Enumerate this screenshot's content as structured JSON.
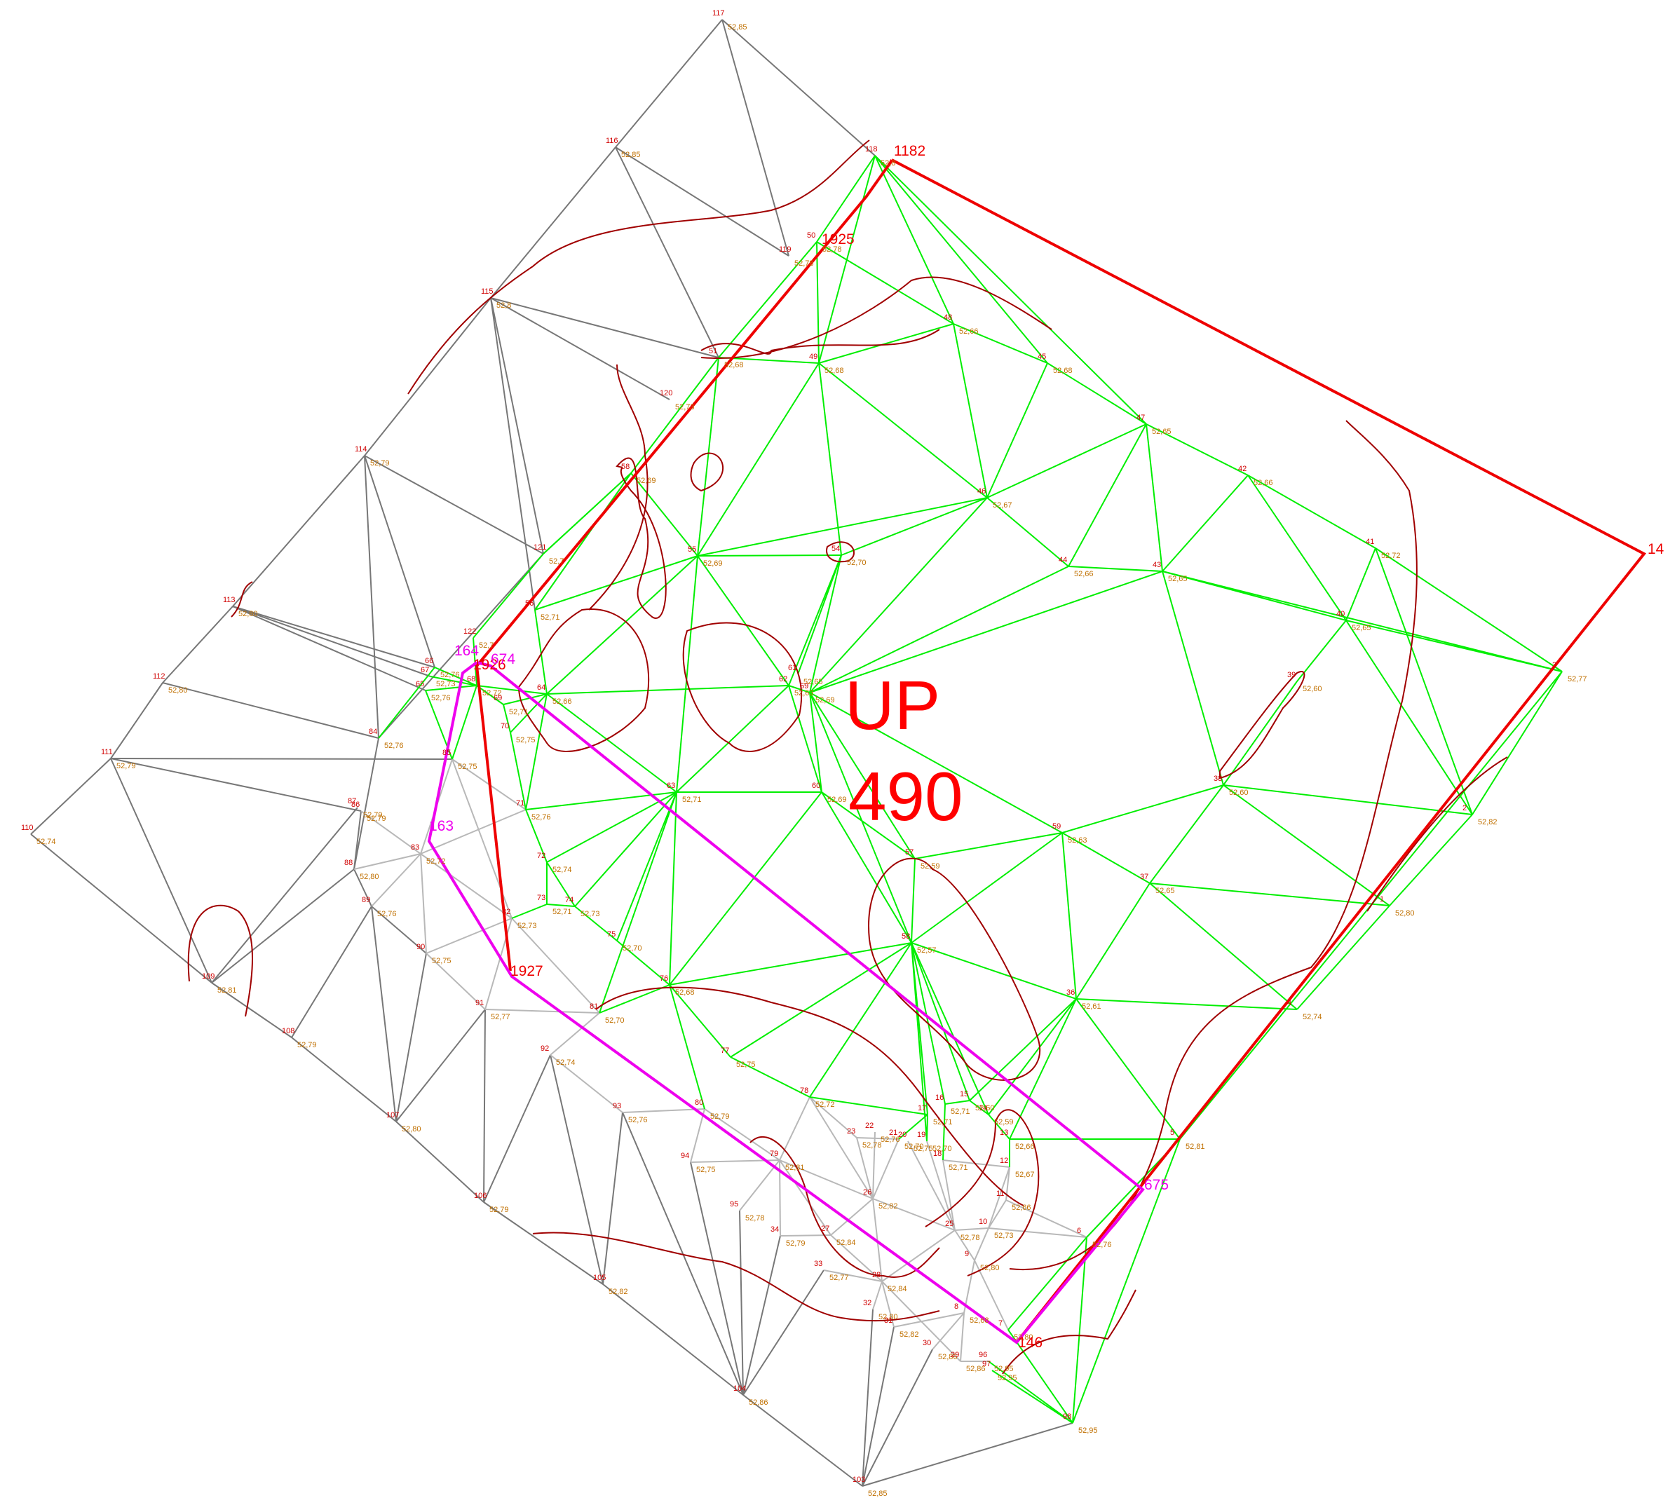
{
  "title": [
    "UP",
    "490"
  ],
  "colors": {
    "green_tin": "#00ee00",
    "gray_tin": "#777777",
    "lightgray_tin": "#b8b8b8",
    "darkgreen_tin": "#3c7a3c",
    "contour": "#a00000",
    "red_parcel": "#ee0000",
    "magenta_parcel": "#ee00ee",
    "point_label": "#d00000",
    "elev_label": "#c07000"
  },
  "red_parcel_labels": [
    "1182",
    "1925",
    "1926",
    "1927",
    "146",
    "14"
  ],
  "magenta_parcel_labels": [
    "164",
    "674",
    "163",
    "675"
  ],
  "points": [
    {
      "id": "117",
      "elev": "52,85"
    },
    {
      "id": "116",
      "elev": "52,85"
    },
    {
      "id": "115",
      "elev": "52,8"
    },
    {
      "id": "114",
      "elev": "52,79"
    },
    {
      "id": "113",
      "elev": "52,80"
    },
    {
      "id": "112",
      "elev": "52,80"
    },
    {
      "id": "111",
      "elev": "52,79"
    },
    {
      "id": "110",
      "elev": "52,74"
    },
    {
      "id": "109",
      "elev": "52,81"
    },
    {
      "id": "108",
      "elev": "52,79"
    },
    {
      "id": "107",
      "elev": "52,80"
    },
    {
      "id": "106",
      "elev": "52,79"
    },
    {
      "id": "105",
      "elev": "52,82"
    },
    {
      "id": "104",
      "elev": "52,86"
    },
    {
      "id": "103",
      "elev": "52,85"
    },
    {
      "id": "118",
      "elev": "52,8"
    },
    {
      "id": "119",
      "elev": "52,78"
    },
    {
      "id": "120",
      "elev": "52,73"
    },
    {
      "id": "121",
      "elev": "52,7"
    },
    {
      "id": "122",
      "elev": "52,7"
    },
    {
      "id": "50",
      "elev": "52,78"
    },
    {
      "id": "51",
      "elev": "52,68"
    },
    {
      "id": "49",
      "elev": "52,68"
    },
    {
      "id": "48",
      "elev": "52,66"
    },
    {
      "id": "45",
      "elev": "52,68"
    },
    {
      "id": "47",
      "elev": "52,65"
    },
    {
      "id": "42",
      "elev": "52,66"
    },
    {
      "id": "46",
      "elev": "52,67"
    },
    {
      "id": "44",
      "elev": "52,66"
    },
    {
      "id": "43",
      "elev": "52,65"
    },
    {
      "id": "41",
      "elev": "52,72"
    },
    {
      "id": "40",
      "elev": "52,65"
    },
    {
      "id": "39",
      "elev": "52,60"
    },
    {
      "id": "38",
      "elev": "52,60"
    },
    {
      "id": "3",
      "elev": "52,77"
    },
    {
      "id": "2",
      "elev": "52,82"
    },
    {
      "id": "1",
      "elev": "52,80"
    },
    {
      "id": "58",
      "elev": "52,69"
    },
    {
      "id": "55",
      "elev": "52,69"
    },
    {
      "id": "54",
      "elev": "52,70"
    },
    {
      "id": "56",
      "elev": "52,71"
    },
    {
      "id": "64",
      "elev": "52,66"
    },
    {
      "id": "62",
      "elev": "52,63"
    },
    {
      "id": "61",
      "elev": "52,65"
    },
    {
      "id": "59",
      "elev": "52,69"
    },
    {
      "id": "63",
      "elev": "52,71"
    },
    {
      "id": "60",
      "elev": "52,69"
    },
    {
      "id": "57",
      "elev": "52,59"
    },
    {
      "id": "59b",
      "elev": "52,63"
    },
    {
      "id": "37",
      "elev": "52,65"
    },
    {
      "id": "58b",
      "elev": "52,57"
    },
    {
      "id": "36",
      "elev": "52,61"
    },
    {
      "id": "4",
      "elev": "52,74"
    },
    {
      "id": "5",
      "elev": "52,81"
    },
    {
      "id": "68",
      "elev": "52,72"
    },
    {
      "id": "66",
      "elev": "52,76"
    },
    {
      "id": "67",
      "elev": "52,73"
    },
    {
      "id": "65",
      "elev": "52,76"
    },
    {
      "id": "69",
      "elev": "52,71"
    },
    {
      "id": "70",
      "elev": "52,75"
    },
    {
      "id": "84",
      "elev": "52,76"
    },
    {
      "id": "85",
      "elev": "52,75"
    },
    {
      "id": "71",
      "elev": "52,76"
    },
    {
      "id": "72",
      "elev": "52,74"
    },
    {
      "id": "73",
      "elev": "52,71"
    },
    {
      "id": "74",
      "elev": "52,73"
    },
    {
      "id": "82",
      "elev": "52,73"
    },
    {
      "id": "75",
      "elev": "52,70"
    },
    {
      "id": "76",
      "elev": "52,68"
    },
    {
      "id": "81",
      "elev": "52,70"
    },
    {
      "id": "77",
      "elev": "52,75"
    },
    {
      "id": "80",
      "elev": "52,79"
    },
    {
      "id": "78",
      "elev": "52,72"
    },
    {
      "id": "79",
      "elev": "52,81"
    },
    {
      "id": "83",
      "elev": "52,72"
    },
    {
      "id": "86",
      "elev": "52,79"
    },
    {
      "id": "87",
      "elev": "52,79"
    },
    {
      "id": "88",
      "elev": "52,80"
    },
    {
      "id": "89",
      "elev": "52,76"
    },
    {
      "id": "90",
      "elev": "52,75"
    },
    {
      "id": "91",
      "elev": "52,77"
    },
    {
      "id": "92",
      "elev": "52,74"
    },
    {
      "id": "93",
      "elev": "52,76"
    },
    {
      "id": "94",
      "elev": "52,75"
    },
    {
      "id": "95",
      "elev": "52,78"
    },
    {
      "id": "34",
      "elev": "52,79"
    },
    {
      "id": "27",
      "elev": "52,84"
    },
    {
      "id": "33",
      "elev": "52,77"
    },
    {
      "id": "28",
      "elev": "52,84"
    },
    {
      "id": "32",
      "elev": "52,80"
    },
    {
      "id": "31",
      "elev": "52,82"
    },
    {
      "id": "30",
      "elev": "52,86"
    },
    {
      "id": "29",
      "elev": "52,86"
    },
    {
      "id": "26",
      "elev": "52,82"
    },
    {
      "id": "23",
      "elev": "52,78"
    },
    {
      "id": "22",
      "elev": "52,76"
    },
    {
      "id": "21",
      "elev": "52,70"
    },
    {
      "id": "20",
      "elev": "52,75"
    },
    {
      "id": "19",
      "elev": "52,70"
    },
    {
      "id": "18",
      "elev": "52,71"
    },
    {
      "id": "17",
      "elev": "52,71"
    },
    {
      "id": "16",
      "elev": "52,71"
    },
    {
      "id": "15",
      "elev": "52,60"
    },
    {
      "id": "14",
      "elev": "52,59"
    },
    {
      "id": "13",
      "elev": "52,66"
    },
    {
      "id": "12",
      "elev": "52,67"
    },
    {
      "id": "11",
      "elev": "52,66"
    },
    {
      "id": "10",
      "elev": "52,73"
    },
    {
      "id": "25",
      "elev": "52,78"
    },
    {
      "id": "9",
      "elev": "52,80"
    },
    {
      "id": "8",
      "elev": "52,68"
    },
    {
      "id": "7",
      "elev": "52,80"
    },
    {
      "id": "6",
      "elev": "52,76"
    },
    {
      "id": "96",
      "elev": "52,95"
    },
    {
      "id": "97",
      "elev": "52,95"
    },
    {
      "id": "98",
      "elev": "52,95"
    }
  ]
}
